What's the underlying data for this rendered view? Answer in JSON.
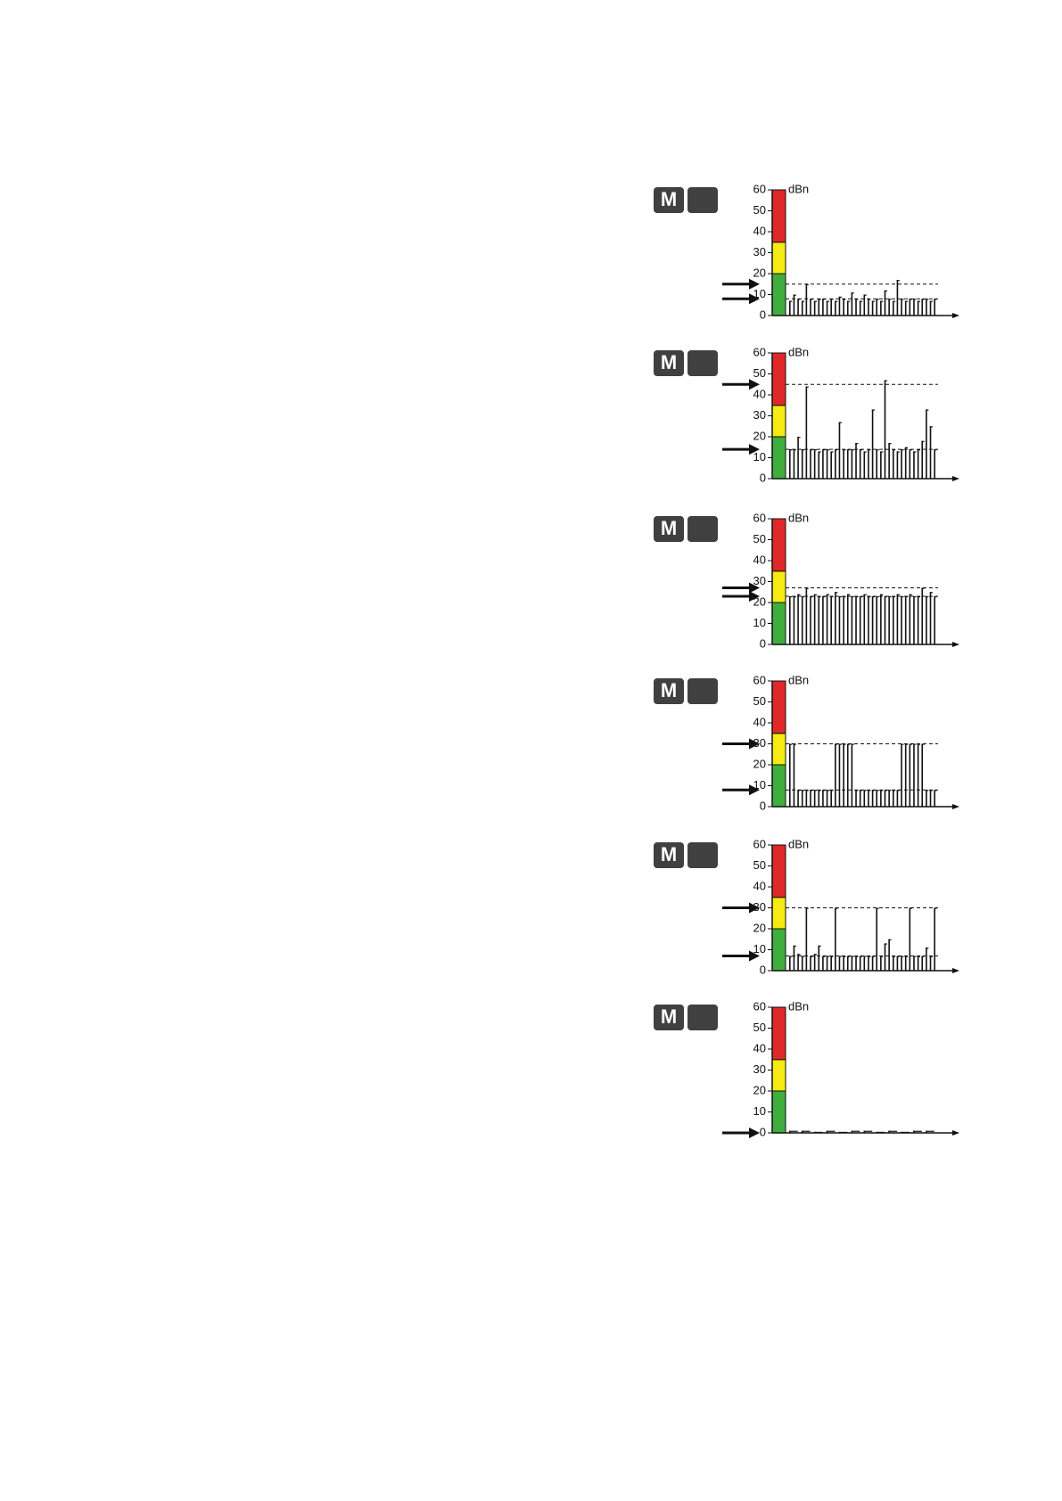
{
  "chart_data": [
    {
      "type": "bar",
      "button_label": "M",
      "unit": "dBn",
      "ylim": [
        0,
        60
      ],
      "yticks": [
        0,
        10,
        20,
        30,
        40,
        50,
        60
      ],
      "bands": [
        {
          "from": 0,
          "to": 20,
          "color": "#3fae3f"
        },
        {
          "from": 20,
          "to": 35,
          "color": "#f5ea14"
        },
        {
          "from": 35,
          "to": 60,
          "color": "#e02828"
        }
      ],
      "thresholds": [
        15,
        8
      ],
      "values": [
        7,
        10,
        8,
        7,
        15,
        8,
        7,
        8,
        8,
        7,
        8,
        7,
        9,
        8,
        7,
        11,
        8,
        7,
        10,
        8,
        7,
        8,
        7,
        12,
        8,
        7,
        17,
        8,
        7,
        8,
        8,
        7,
        8,
        8,
        7,
        8
      ]
    },
    {
      "type": "bar",
      "button_label": "M",
      "unit": "dBn",
      "ylim": [
        0,
        60
      ],
      "yticks": [
        0,
        10,
        20,
        30,
        40,
        50,
        60
      ],
      "bands": [
        {
          "from": 0,
          "to": 20,
          "color": "#3fae3f"
        },
        {
          "from": 20,
          "to": 35,
          "color": "#f5ea14"
        },
        {
          "from": 35,
          "to": 60,
          "color": "#e02828"
        }
      ],
      "thresholds": [
        45,
        14
      ],
      "values": [
        14,
        14,
        20,
        14,
        44,
        14,
        14,
        13,
        14,
        14,
        13,
        14,
        27,
        14,
        14,
        14,
        17,
        14,
        13,
        14,
        33,
        14,
        13,
        47,
        17,
        14,
        13,
        14,
        15,
        14,
        13,
        14,
        18,
        33,
        25,
        14
      ]
    },
    {
      "type": "bar",
      "button_label": "M",
      "unit": "dBn",
      "ylim": [
        0,
        60
      ],
      "yticks": [
        0,
        10,
        20,
        30,
        40,
        50,
        60
      ],
      "bands": [
        {
          "from": 0,
          "to": 20,
          "color": "#3fae3f"
        },
        {
          "from": 20,
          "to": 35,
          "color": "#f5ea14"
        },
        {
          "from": 35,
          "to": 60,
          "color": "#e02828"
        }
      ],
      "thresholds": [
        27,
        23
      ],
      "values": [
        23,
        23,
        24,
        23,
        27,
        23,
        24,
        23,
        23,
        24,
        23,
        25,
        23,
        23,
        24,
        23,
        23,
        23,
        24,
        23,
        23,
        23,
        24,
        23,
        23,
        23,
        24,
        23,
        23,
        24,
        23,
        23,
        27,
        23,
        25,
        23
      ]
    },
    {
      "type": "bar",
      "button_label": "M",
      "unit": "dBn",
      "ylim": [
        0,
        60
      ],
      "yticks": [
        0,
        10,
        20,
        30,
        40,
        50,
        60
      ],
      "bands": [
        {
          "from": 0,
          "to": 20,
          "color": "#3fae3f"
        },
        {
          "from": 20,
          "to": 35,
          "color": "#f5ea14"
        },
        {
          "from": 35,
          "to": 60,
          "color": "#e02828"
        }
      ],
      "thresholds": [
        30,
        8
      ],
      "values": [
        30,
        30,
        8,
        8,
        8,
        8,
        8,
        8,
        8,
        8,
        8,
        30,
        30,
        30,
        30,
        30,
        8,
        8,
        8,
        8,
        8,
        8,
        8,
        8,
        8,
        8,
        8,
        30,
        30,
        30,
        30,
        30,
        30,
        8,
        8,
        8
      ]
    },
    {
      "type": "bar",
      "button_label": "M",
      "unit": "dBn",
      "ylim": [
        0,
        60
      ],
      "yticks": [
        0,
        10,
        20,
        30,
        40,
        50,
        60
      ],
      "bands": [
        {
          "from": 0,
          "to": 20,
          "color": "#3fae3f"
        },
        {
          "from": 20,
          "to": 35,
          "color": "#f5ea14"
        },
        {
          "from": 35,
          "to": 60,
          "color": "#e02828"
        }
      ],
      "thresholds": [
        30,
        7
      ],
      "values": [
        7,
        12,
        8,
        7,
        30,
        7,
        8,
        12,
        7,
        7,
        7,
        30,
        7,
        7,
        7,
        7,
        7,
        7,
        7,
        7,
        7,
        30,
        7,
        13,
        15,
        7,
        7,
        7,
        7,
        30,
        7,
        7,
        7,
        11,
        7,
        30
      ]
    },
    {
      "type": "bar",
      "button_label": "M",
      "unit": "dBn",
      "ylim": [
        0,
        60
      ],
      "yticks": [
        0,
        10,
        20,
        30,
        40,
        50,
        60
      ],
      "bands": [
        {
          "from": 0,
          "to": 20,
          "color": "#3fae3f"
        },
        {
          "from": 20,
          "to": 35,
          "color": "#f5ea14"
        },
        {
          "from": 35,
          "to": 60,
          "color": "#e02828"
        }
      ],
      "thresholds": [
        0
      ],
      "values": [
        1,
        1,
        0.5,
        1,
        0.5,
        1,
        1,
        0.5,
        1,
        0.5,
        1,
        1
      ]
    }
  ]
}
